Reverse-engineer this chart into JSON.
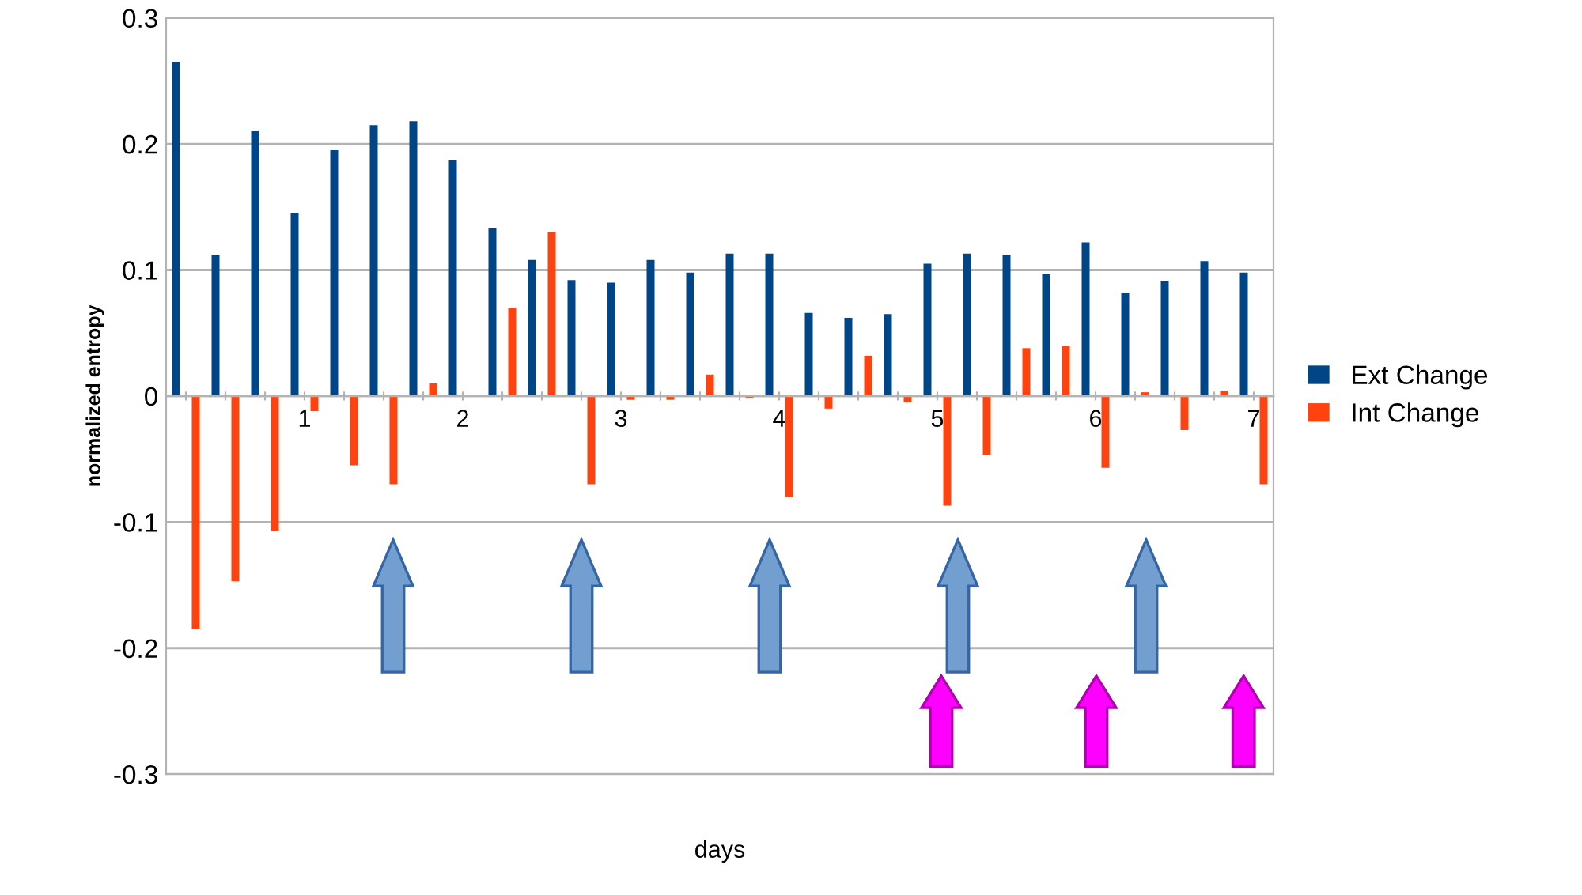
{
  "chart_data": {
    "type": "bar",
    "xlabel": "days",
    "ylabel": "normalized entropy",
    "categories": [
      null,
      null,
      null,
      "1",
      null,
      null,
      null,
      "2",
      null,
      null,
      null,
      "3",
      null,
      null,
      null,
      "4",
      null,
      null,
      null,
      "5",
      null,
      null,
      null,
      "6",
      null,
      null,
      null,
      "7"
    ],
    "series": [
      {
        "name": "Ext Change",
        "color": "#004586",
        "values": [
          0.265,
          0.112,
          0.21,
          0.145,
          0.195,
          0.215,
          0.218,
          0.187,
          0.133,
          0.108,
          0.092,
          0.09,
          0.108,
          0.098,
          0.113,
          0.113,
          0.066,
          0.062,
          0.065,
          0.105,
          0.113,
          0.112,
          0.097,
          0.122,
          0.082,
          0.091,
          0.107,
          0.098
        ]
      },
      {
        "name": "Int Change",
        "color": "#ff420e",
        "values": [
          -0.185,
          -0.147,
          -0.107,
          -0.012,
          -0.055,
          -0.07,
          0.01,
          0.001,
          0.07,
          0.13,
          -0.07,
          -0.003,
          -0.003,
          0.017,
          -0.002,
          -0.08,
          -0.01,
          0.032,
          -0.005,
          -0.087,
          -0.047,
          0.038,
          0.04,
          -0.057,
          0.003,
          -0.027,
          0.004,
          -0.07
        ]
      }
    ],
    "ylim": [
      -0.3,
      0.3
    ],
    "yticks": [
      -0.3,
      -0.2,
      -0.1,
      0,
      0.1,
      0.2,
      0.3
    ],
    "grid": "y",
    "legend": "right"
  }
}
